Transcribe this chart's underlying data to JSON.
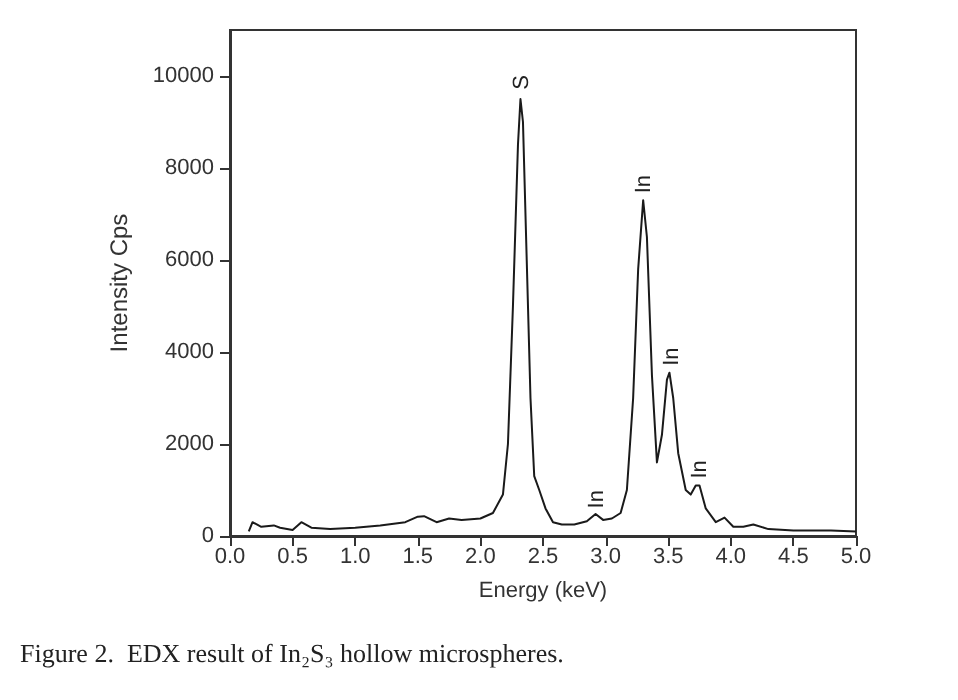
{
  "chart_data": {
    "type": "line",
    "xlabel": "Energy (keV)",
    "ylabel": "Intensity Cps",
    "x": [
      0.15,
      0.18,
      0.25,
      0.35,
      0.4,
      0.5,
      0.57,
      0.65,
      0.8,
      1.0,
      1.2,
      1.4,
      1.5,
      1.55,
      1.65,
      1.75,
      1.85,
      2.0,
      2.1,
      2.18,
      2.22,
      2.26,
      2.3,
      2.32,
      2.34,
      2.37,
      2.4,
      2.43,
      2.47,
      2.52,
      2.58,
      2.65,
      2.75,
      2.85,
      2.92,
      2.98,
      3.05,
      3.12,
      3.17,
      3.22,
      3.26,
      3.3,
      3.33,
      3.37,
      3.41,
      3.45,
      3.49,
      3.51,
      3.54,
      3.58,
      3.64,
      3.68,
      3.72,
      3.75,
      3.8,
      3.88,
      3.95,
      4.02,
      4.1,
      4.18,
      4.3,
      4.5,
      4.8,
      5.0
    ],
    "series": [
      {
        "color": "#1a1a1a",
        "values": [
          100,
          300,
          200,
          230,
          180,
          130,
          300,
          180,
          150,
          180,
          230,
          300,
          420,
          430,
          300,
          380,
          350,
          380,
          500,
          900,
          2000,
          5000,
          8500,
          9500,
          9000,
          6000,
          3000,
          1300,
          1000,
          600,
          300,
          250,
          250,
          320,
          480,
          350,
          380,
          500,
          1000,
          3000,
          5800,
          7300,
          6500,
          3500,
          1600,
          2200,
          3400,
          3550,
          3000,
          1800,
          1000,
          900,
          1100,
          1100,
          600,
          300,
          400,
          200,
          200,
          250,
          150,
          120,
          120,
          100
        ]
      }
    ],
    "xlim": [
      0,
      5
    ],
    "ylim": [
      0,
      11000
    ],
    "xticks": [
      {
        "value": 0,
        "label": "0.0"
      },
      0.5,
      {
        "value": 1,
        "label": "1.0"
      },
      1.5,
      {
        "value": 2,
        "label": "2.0"
      },
      2.5,
      {
        "value": 3,
        "label": "3.0"
      },
      3.5,
      {
        "value": 4,
        "label": "4.0"
      },
      4.5,
      {
        "value": 5,
        "label": "5.0"
      }
    ],
    "yticks": [
      0,
      2000,
      4000,
      6000,
      8000,
      10000
    ],
    "grid": false,
    "marker": "none",
    "line_style": "solid",
    "annotations": [
      {
        "text": "S",
        "x": 2.33,
        "y": 9700
      },
      {
        "text": "In",
        "x": 2.93,
        "y": 600
      },
      {
        "text": "In",
        "x": 3.31,
        "y": 7450
      },
      {
        "text": "In",
        "x": 3.53,
        "y": 3700
      },
      {
        "text": "In",
        "x": 3.75,
        "y": 1250
      },
      "Figure 2.  EDX result of In₂S₃ hollow microspheres."
    ]
  }
}
